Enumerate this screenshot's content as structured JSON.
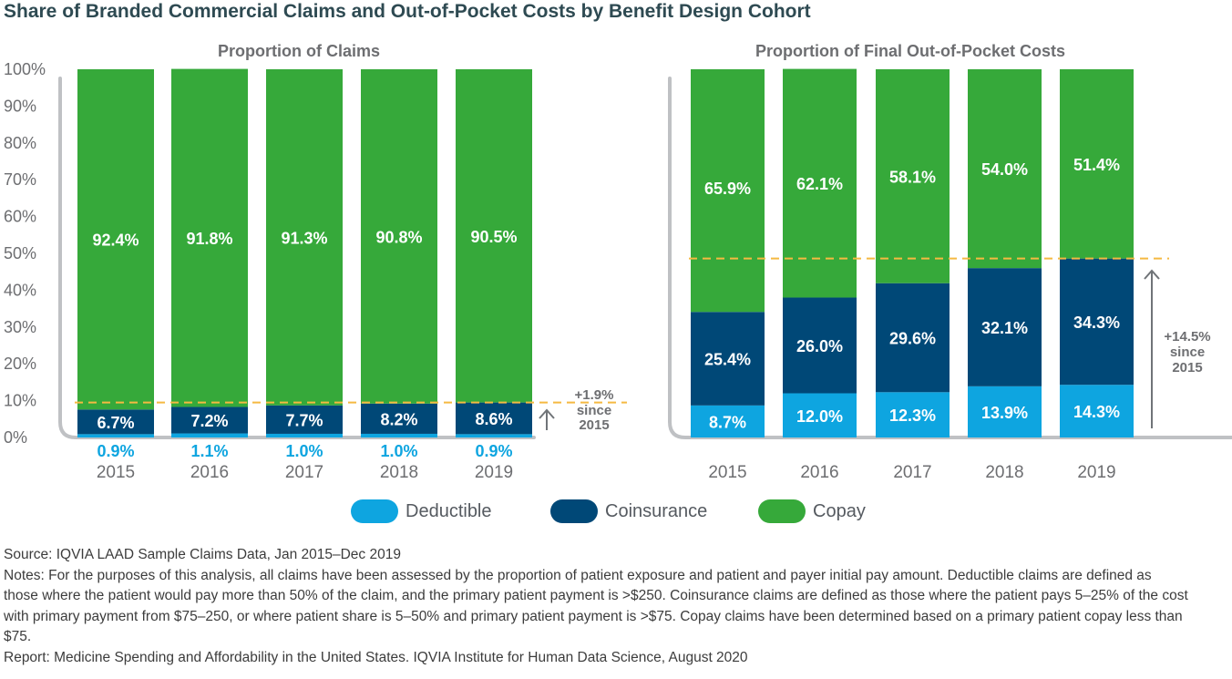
{
  "title": "Share of Branded Commercial Claims and Out-of-Pocket Costs by Benefit Design Cohort",
  "colors": {
    "deductible": "#0ea5e0",
    "coinsurance": "#004877",
    "copay": "#36a93a",
    "reference_line": "#f5b942",
    "bracket": "#bfc1c4",
    "arrow": "#707478"
  },
  "legend": [
    {
      "key": "deductible",
      "label": "Deductible"
    },
    {
      "key": "coinsurance",
      "label": "Coinsurance"
    },
    {
      "key": "copay",
      "label": "Copay"
    }
  ],
  "chart_data": [
    {
      "type": "bar",
      "stacked": true,
      "title": "Proportion of Claims",
      "categories": [
        "2015",
        "2016",
        "2017",
        "2018",
        "2019"
      ],
      "ylim": [
        0,
        100
      ],
      "yticks": [
        "0%",
        "10%",
        "20%",
        "30%",
        "40%",
        "50%",
        "60%",
        "70%",
        "80%",
        "90%",
        "100%"
      ],
      "series": [
        {
          "name": "Deductible",
          "key": "deductible",
          "values": [
            0.9,
            1.1,
            1.0,
            1.0,
            0.9
          ],
          "labels": [
            "0.9%",
            "1.1%",
            "1.0%",
            "1.0%",
            "0.9%"
          ]
        },
        {
          "name": "Coinsurance",
          "key": "coinsurance",
          "values": [
            6.7,
            7.2,
            7.7,
            8.2,
            8.6
          ],
          "labels": [
            "6.7%",
            "7.2%",
            "7.7%",
            "8.2%",
            "8.6%"
          ]
        },
        {
          "name": "Copay",
          "key": "copay",
          "values": [
            92.4,
            91.8,
            91.3,
            90.8,
            90.5
          ],
          "labels": [
            "92.4%",
            "91.8%",
            "91.3%",
            "90.8%",
            "90.5%"
          ]
        }
      ],
      "reference_line_value": 9.5,
      "annotation": {
        "value": "+1.9%",
        "line2": "since",
        "line3": "2015"
      }
    },
    {
      "type": "bar",
      "stacked": true,
      "title": "Proportion of Final Out-of-Pocket Costs",
      "categories": [
        "2015",
        "2016",
        "2017",
        "2018",
        "2019"
      ],
      "ylim": [
        0,
        100
      ],
      "series": [
        {
          "name": "Deductible",
          "key": "deductible",
          "values": [
            8.7,
            12.0,
            12.3,
            13.9,
            14.3
          ],
          "labels": [
            "8.7%",
            "12.0%",
            "12.3%",
            "13.9%",
            "14.3%"
          ]
        },
        {
          "name": "Coinsurance",
          "key": "coinsurance",
          "values": [
            25.4,
            26.0,
            29.6,
            32.1,
            34.3
          ],
          "labels": [
            "25.4%",
            "26.0%",
            "29.6%",
            "32.1%",
            "34.3%"
          ]
        },
        {
          "name": "Copay",
          "key": "copay",
          "values": [
            65.9,
            62.1,
            58.1,
            54.0,
            51.4
          ],
          "labels": [
            "65.9%",
            "62.1%",
            "58.1%",
            "54.0%",
            "51.4%"
          ]
        }
      ],
      "reference_line_value": 48.6,
      "annotation": {
        "value": "+14.5%",
        "line2": "since",
        "line3": "2015"
      }
    }
  ],
  "notes": [
    "Source: IQVIA LAAD Sample Claims Data, Jan 2015–Dec 2019",
    "Notes: For the purposes of this analysis, all claims have been assessed by the proportion of patient exposure and patient and payer initial pay amount. Deductible claims are defined as those where the patient would pay more than 50% of the claim, and the primary patient payment is >$250. Coinsurance claims are defined as those where the patient pays 5–25% of the cost with primary payment from $75–250, or where patient share is 5–50% and primary patient payment is >$75. Copay claims have been determined based on a primary patient copay less than $75.",
    "Report: Medicine Spending and Affordability in the United States. IQVIA Institute for Human Data Science, August 2020"
  ]
}
